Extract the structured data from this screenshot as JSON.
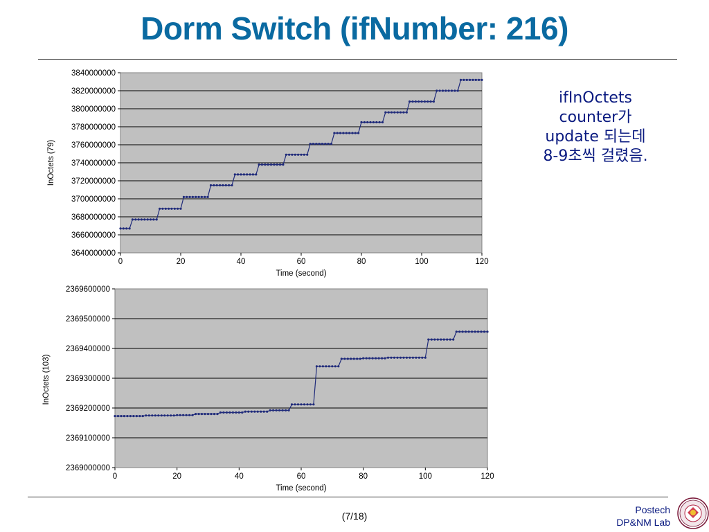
{
  "slide": {
    "title": "Dorm Switch (ifNumber: 216)",
    "note_lines": [
      "ifInOctets",
      "counter가",
      "update 되는데",
      "8-9초씩 걸렸음."
    ],
    "page_number": "(7/18)",
    "lab_line1": "Postech",
    "lab_line2": "DP&NM Lab"
  },
  "colors": {
    "title": "#0a6aa1",
    "series": "#1f2a7a",
    "plot_bg": "#c0c0c0",
    "note": "#0a1a80"
  },
  "chart_data": [
    {
      "type": "line",
      "xlabel": "Time (second)",
      "ylabel": "InOctets (79)",
      "xlim": [
        0,
        120
      ],
      "ylim": [
        3640000000,
        3840000000
      ],
      "xticks": [
        "0",
        "20",
        "40",
        "60",
        "80",
        "100",
        "120"
      ],
      "yticks": [
        "3640000000",
        "3660000000",
        "3680000000",
        "3700000000",
        "3720000000",
        "3740000000",
        "3760000000",
        "3780000000",
        "3800000000",
        "3820000000",
        "3840000000"
      ],
      "grid": true,
      "steps": [
        [
          0,
          3667000000
        ],
        [
          4,
          3677000000
        ],
        [
          13,
          3689000000
        ],
        [
          21,
          3702000000
        ],
        [
          30,
          3715000000
        ],
        [
          38,
          3727000000
        ],
        [
          46,
          3738000000
        ],
        [
          55,
          3749000000
        ],
        [
          63,
          3761000000
        ],
        [
          71,
          3773000000
        ],
        [
          80,
          3785000000
        ],
        [
          88,
          3796000000
        ],
        [
          96,
          3808000000
        ],
        [
          105,
          3820000000
        ],
        [
          113,
          3832000000
        ]
      ],
      "x_end": 120
    },
    {
      "type": "line",
      "xlabel": "Time (second)",
      "ylabel": "InOctets (103)",
      "xlim": [
        0,
        120
      ],
      "ylim": [
        2369000000,
        2369600000
      ],
      "xticks": [
        "0",
        "20",
        "40",
        "60",
        "80",
        "100",
        "120"
      ],
      "yticks": [
        "2369000000",
        "2369100000",
        "2369200000",
        "2369300000",
        "2369400000",
        "2369500000",
        "2369600000"
      ],
      "grid": true,
      "steps": [
        [
          0,
          2369173000
        ],
        [
          10,
          2369175000
        ],
        [
          20,
          2369176000
        ],
        [
          26,
          2369180000
        ],
        [
          34,
          2369185000
        ],
        [
          42,
          2369188000
        ],
        [
          50,
          2369192000
        ],
        [
          57,
          2369212000
        ],
        [
          65,
          2369340000
        ],
        [
          73,
          2369365000
        ],
        [
          80,
          2369367000
        ],
        [
          88,
          2369369000
        ],
        [
          101,
          2369430000
        ],
        [
          110,
          2369456000
        ]
      ],
      "x_end": 120
    }
  ]
}
